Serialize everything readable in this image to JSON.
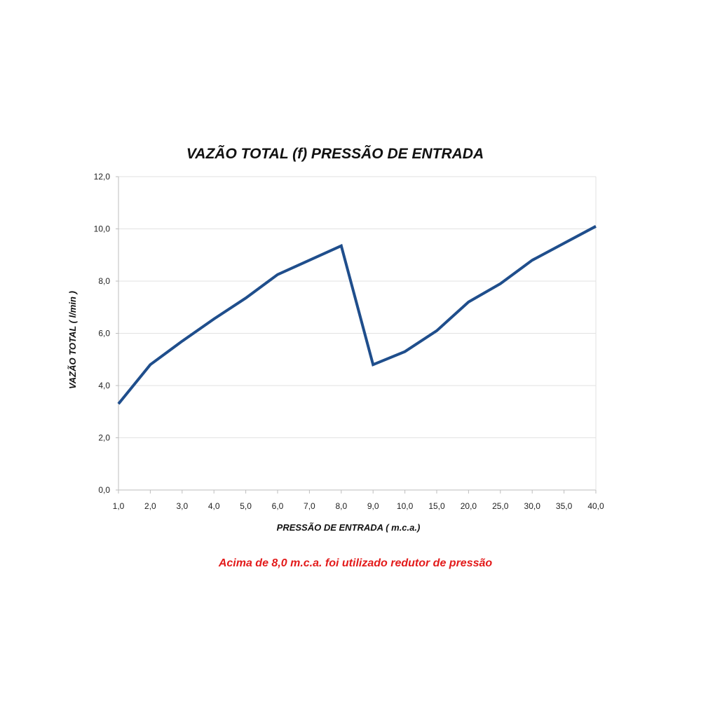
{
  "chart_data": {
    "type": "line",
    "title": "VAZÃO TOTAL (f) PRESSÃO DE ENTRADA",
    "xlabel": "PRESSÃO DE ENTRADA ( m.c.a.)",
    "ylabel": "VAZÃO TOTAL ( l/min )",
    "categories": [
      "1,0",
      "2,0",
      "3,0",
      "4,0",
      "5,0",
      "6,0",
      "7,0",
      "8,0",
      "9,0",
      "10,0",
      "15,0",
      "20,0",
      "25,0",
      "30,0",
      "35,0",
      "40,0"
    ],
    "series": [
      {
        "values": [
          3.3,
          4.8,
          5.7,
          6.55,
          7.35,
          8.25,
          8.8,
          9.35,
          4.8,
          5.3,
          6.1,
          7.2,
          7.9,
          8.8,
          9.45,
          10.1
        ]
      }
    ],
    "ylim": [
      0,
      12
    ],
    "yticks": [
      "0,0",
      "2,0",
      "4,0",
      "6,0",
      "8,0",
      "10,0",
      "12,0"
    ],
    "grid": true,
    "line_color": "#1f4e8c"
  },
  "note": {
    "text": "Acima de 8,0 m.c.a. foi utilizado redutor de pressão",
    "color": "#e31b1b"
  }
}
